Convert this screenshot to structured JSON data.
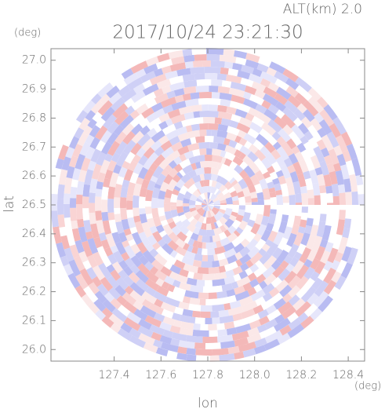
{
  "chart_data": {
    "type": "radar-ppi",
    "title": "2017/10/24 23:21:30",
    "subtitle": "ALT(km) 2.0",
    "x_label": "lon",
    "y_label": "lat",
    "x_unit": "(deg)",
    "y_unit": "(deg)",
    "xlim": [
      127.13,
      128.47
    ],
    "ylim": [
      25.96,
      27.04
    ],
    "xticks": [
      127.4,
      127.6,
      127.8,
      {
        "value": 128,
        "label": "128.0"
      },
      128.2,
      128.4
    ],
    "yticks": [
      {
        "value": 26,
        "label": "26.0"
      },
      26.1,
      26.2,
      26.3,
      26.4,
      26.5,
      26.6,
      26.7,
      26.8,
      26.9,
      {
        "value": 27,
        "label": "27.0"
      }
    ]
  }
}
